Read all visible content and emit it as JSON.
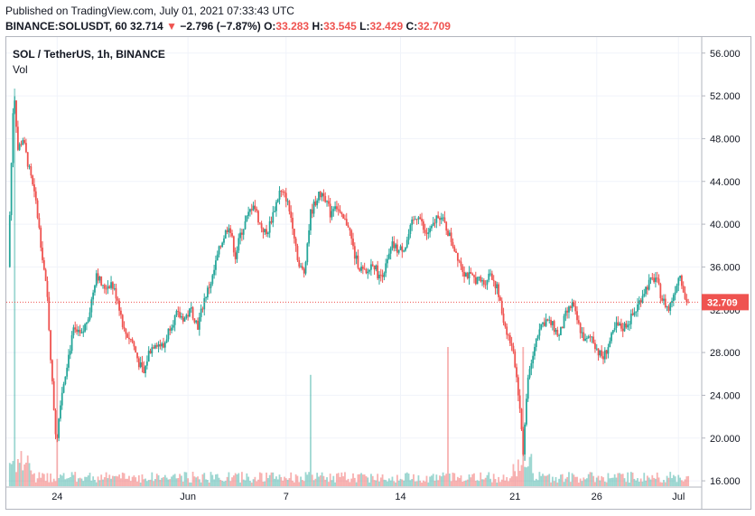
{
  "header": {
    "published": "Published on TradingView.com, July 01, 2021 07:33:43 UTC",
    "symbol": "BINANCE:SOLUSDT, 60",
    "last": "32.714",
    "arrow": "▼",
    "change": "−2.796 (−7.87%)",
    "open_label": "O:",
    "open": "33.283",
    "high_label": "H:",
    "high": "33.545",
    "low_label": "L:",
    "low": "32.429",
    "close_label": "C:",
    "close": "32.709"
  },
  "chart_data": {
    "type": "candlestick",
    "title": "SOL / TetherUS, 1h, BINANCE",
    "volume_label": "Vol",
    "ylim": [
      15.5,
      57.5
    ],
    "y_ticks": [
      "56.000",
      "52.000",
      "48.000",
      "44.000",
      "40.000",
      "36.000",
      "32.000",
      "28.000",
      "24.000",
      "20.000",
      "16.000"
    ],
    "x_ticks": [
      {
        "label": "24",
        "day": 3
      },
      {
        "label": "Jun",
        "day": 11
      },
      {
        "label": "7",
        "day": 17
      },
      {
        "label": "14",
        "day": 24
      },
      {
        "label": "21",
        "day": 31
      },
      {
        "label": "26",
        "day": 36
      },
      {
        "label": "Jul",
        "day": 41
      }
    ],
    "x_start": "May 21",
    "last_price": "32.709",
    "last_price_value": 32.709,
    "colors": {
      "up": "#26a69a",
      "down": "#ef5350",
      "last_price": "#ef5350"
    },
    "path": [
      [
        0.0,
        36
      ],
      [
        0.35,
        53
      ],
      [
        0.6,
        47
      ],
      [
        0.9,
        48
      ],
      [
        1.3,
        45
      ],
      [
        1.7,
        42
      ],
      [
        2.1,
        37
      ],
      [
        2.4,
        33
      ],
      [
        2.7,
        25
      ],
      [
        2.95,
        19.5
      ],
      [
        3.2,
        23.5
      ],
      [
        3.6,
        27
      ],
      [
        4.0,
        30
      ],
      [
        4.5,
        29.5
      ],
      [
        5.0,
        32
      ],
      [
        5.4,
        35.5
      ],
      [
        5.8,
        34
      ],
      [
        6.3,
        34.5
      ],
      [
        6.7,
        33
      ],
      [
        7.1,
        30
      ],
      [
        7.6,
        29
      ],
      [
        8.0,
        27
      ],
      [
        8.3,
        26
      ],
      [
        8.6,
        28
      ],
      [
        9.0,
        29
      ],
      [
        9.5,
        28.5
      ],
      [
        9.9,
        30.5
      ],
      [
        10.3,
        31.5
      ],
      [
        10.8,
        31.2
      ],
      [
        11.2,
        32
      ],
      [
        11.6,
        30.5
      ],
      [
        12.0,
        33
      ],
      [
        12.5,
        35
      ],
      [
        12.8,
        37
      ],
      [
        13.1,
        38.5
      ],
      [
        13.5,
        40
      ],
      [
        13.9,
        37
      ],
      [
        14.2,
        39
      ],
      [
        14.6,
        40.5
      ],
      [
        15.0,
        42
      ],
      [
        15.4,
        40
      ],
      [
        15.8,
        39
      ],
      [
        16.2,
        41
      ],
      [
        16.6,
        43
      ],
      [
        17.0,
        42.5
      ],
      [
        17.4,
        40
      ],
      [
        17.8,
        36
      ],
      [
        18.1,
        35.5
      ],
      [
        18.5,
        41
      ],
      [
        18.9,
        42.5
      ],
      [
        19.3,
        43
      ],
      [
        19.7,
        41
      ],
      [
        20.0,
        42
      ],
      [
        20.4,
        40.5
      ],
      [
        20.8,
        40
      ],
      [
        21.2,
        37
      ],
      [
        21.5,
        36
      ],
      [
        21.9,
        35.2
      ],
      [
        22.3,
        36.5
      ],
      [
        22.7,
        35
      ],
      [
        23.1,
        36
      ],
      [
        23.5,
        38
      ],
      [
        23.9,
        37.5
      ],
      [
        24.3,
        38
      ],
      [
        24.7,
        40
      ],
      [
        25.1,
        41
      ],
      [
        25.5,
        39
      ],
      [
        25.9,
        39.5
      ],
      [
        26.3,
        41
      ],
      [
        26.7,
        40
      ],
      [
        27.1,
        38.5
      ],
      [
        27.5,
        37
      ],
      [
        27.9,
        35.5
      ],
      [
        28.3,
        35
      ],
      [
        28.7,
        34.8
      ],
      [
        29.1,
        34.5
      ],
      [
        29.5,
        35.5
      ],
      [
        29.9,
        34
      ],
      [
        30.3,
        31
      ],
      [
        30.7,
        29
      ],
      [
        31.0,
        27
      ],
      [
        31.3,
        23
      ],
      [
        31.5,
        18.8
      ],
      [
        31.8,
        26
      ],
      [
        32.1,
        28
      ],
      [
        32.5,
        30.5
      ],
      [
        32.9,
        31
      ],
      [
        33.3,
        30.5
      ],
      [
        33.7,
        29.5
      ],
      [
        34.1,
        31.5
      ],
      [
        34.5,
        32.5
      ],
      [
        34.9,
        30.5
      ],
      [
        35.3,
        29
      ],
      [
        35.7,
        29.5
      ],
      [
        36.1,
        28
      ],
      [
        36.4,
        27.5
      ],
      [
        36.8,
        29
      ],
      [
        37.2,
        30.5
      ],
      [
        37.6,
        30.3
      ],
      [
        38.0,
        31
      ],
      [
        38.4,
        32
      ],
      [
        38.8,
        33.5
      ],
      [
        39.2,
        34.5
      ],
      [
        39.6,
        35
      ],
      [
        40.0,
        33
      ],
      [
        40.4,
        32
      ],
      [
        40.8,
        34
      ],
      [
        41.1,
        35.5
      ],
      [
        41.4,
        33
      ],
      [
        41.6,
        32.709
      ]
    ],
    "volume_spikes": [
      {
        "day": 0.4,
        "rel": 1.0
      },
      {
        "day": 3.0,
        "rel": 0.32
      },
      {
        "day": 18.5,
        "rel": 0.28
      },
      {
        "day": 26.9,
        "rel": 0.35
      },
      {
        "day": 31.5,
        "rel": 0.35
      }
    ]
  }
}
